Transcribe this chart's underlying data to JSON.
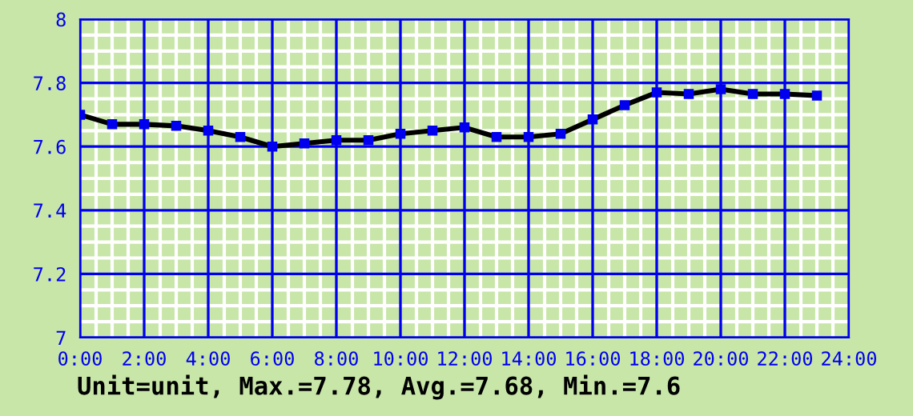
{
  "chart_data": {
    "type": "line",
    "x": [
      0,
      1,
      2,
      3,
      4,
      5,
      6,
      7,
      8,
      9,
      10,
      11,
      12,
      13,
      14,
      15,
      16,
      17,
      18,
      19,
      20,
      21,
      22,
      23
    ],
    "series": [
      {
        "color": "#000000",
        "values": [
          7.7,
          7.67,
          7.67,
          7.665,
          7.65,
          7.63,
          7.6,
          7.61,
          7.62,
          7.62,
          7.64,
          7.65,
          7.66,
          7.63,
          7.63,
          7.64,
          7.685,
          7.73,
          7.77,
          7.765,
          7.78,
          7.765,
          7.765,
          7.76
        ]
      }
    ],
    "xlim": [
      0,
      24
    ],
    "xticks": [
      {
        "value": 0,
        "label": "0:00"
      },
      {
        "value": 2,
        "label": "2:00"
      },
      {
        "value": 4,
        "label": "4:00"
      },
      {
        "value": 6,
        "label": "6:00"
      },
      {
        "value": 8,
        "label": "8:00"
      },
      {
        "value": 10,
        "label": "10:00"
      },
      {
        "value": 12,
        "label": "12:00"
      },
      {
        "value": 14,
        "label": "14:00"
      },
      {
        "value": 16,
        "label": "16:00"
      },
      {
        "value": 18,
        "label": "18:00"
      },
      {
        "value": 20,
        "label": "20:00"
      },
      {
        "value": 22,
        "label": "22:00"
      },
      {
        "value": 24,
        "label": "24:00"
      }
    ],
    "ylim": [
      7,
      8
    ],
    "yticks": [
      7,
      7.2,
      7.4,
      7.6,
      7.8,
      8
    ],
    "grid": true,
    "marker": "square",
    "line_style": "solid",
    "annotations": [
      "Unit=unit, Max.=7.78, Avg.=7.68, Min.=7.6"
    ]
  }
}
